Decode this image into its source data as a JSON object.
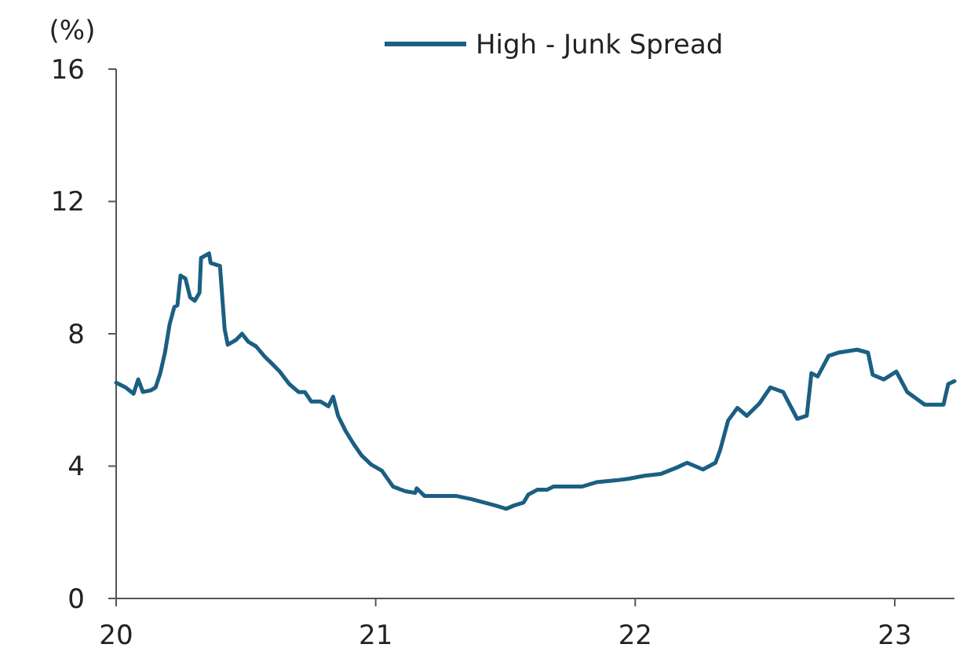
{
  "chart_data": {
    "type": "line",
    "ylabel": "(%)",
    "legend": "top",
    "grid": false,
    "marker": "none",
    "line_style": "solid",
    "xlim": [
      20,
      23.23
    ],
    "xticks": [
      20,
      21,
      22,
      23
    ],
    "ylim": [
      0,
      16
    ],
    "yticks": [
      0,
      4,
      8,
      12,
      16
    ],
    "x": [
      20.0,
      20.036,
      20.067,
      20.085,
      20.103,
      20.133,
      20.152,
      20.17,
      20.188,
      20.206,
      20.224,
      20.236,
      20.248,
      20.267,
      20.285,
      20.303,
      20.321,
      20.327,
      20.358,
      20.364,
      20.4,
      20.418,
      20.43,
      20.461,
      20.485,
      20.509,
      20.539,
      20.57,
      20.6,
      20.63,
      20.667,
      20.703,
      20.727,
      20.752,
      20.788,
      20.818,
      20.836,
      20.855,
      20.885,
      20.915,
      20.945,
      20.982,
      21.024,
      21.067,
      21.115,
      21.152,
      21.158,
      21.188,
      21.236,
      21.309,
      21.37,
      21.418,
      21.461,
      21.503,
      21.533,
      21.57,
      21.588,
      21.624,
      21.661,
      21.685,
      21.733,
      21.794,
      21.855,
      21.927,
      21.976,
      22.036,
      22.097,
      22.158,
      22.2,
      22.261,
      22.309,
      22.327,
      22.358,
      22.394,
      22.43,
      22.479,
      22.521,
      22.57,
      22.624,
      22.661,
      22.679,
      22.703,
      22.745,
      22.782,
      22.855,
      22.897,
      22.915,
      22.958,
      23.006,
      23.048,
      23.115,
      23.188,
      23.206,
      23.23
    ],
    "series": [
      {
        "name": "High - Junk Spread",
        "color": "#1b5f83",
        "values": [
          6.52,
          6.38,
          6.19,
          6.62,
          6.24,
          6.29,
          6.38,
          6.81,
          7.43,
          8.29,
          8.81,
          8.86,
          9.76,
          9.67,
          9.1,
          9.0,
          9.24,
          10.29,
          10.43,
          10.14,
          10.05,
          8.14,
          7.67,
          7.81,
          8.0,
          7.76,
          7.62,
          7.33,
          7.1,
          6.86,
          6.48,
          6.24,
          6.24,
          5.95,
          5.95,
          5.81,
          6.1,
          5.52,
          5.05,
          4.67,
          4.33,
          4.05,
          3.86,
          3.38,
          3.24,
          3.19,
          3.33,
          3.1,
          3.1,
          3.1,
          3.0,
          2.9,
          2.81,
          2.71,
          2.81,
          2.9,
          3.14,
          3.29,
          3.29,
          3.38,
          3.38,
          3.38,
          3.52,
          3.57,
          3.62,
          3.71,
          3.76,
          3.95,
          4.1,
          3.9,
          4.1,
          4.48,
          5.38,
          5.76,
          5.52,
          5.9,
          6.38,
          6.24,
          5.43,
          5.52,
          6.81,
          6.71,
          7.33,
          7.43,
          7.52,
          7.43,
          6.76,
          6.62,
          6.86,
          6.24,
          5.86,
          5.86,
          6.48,
          6.57
        ]
      }
    ]
  }
}
